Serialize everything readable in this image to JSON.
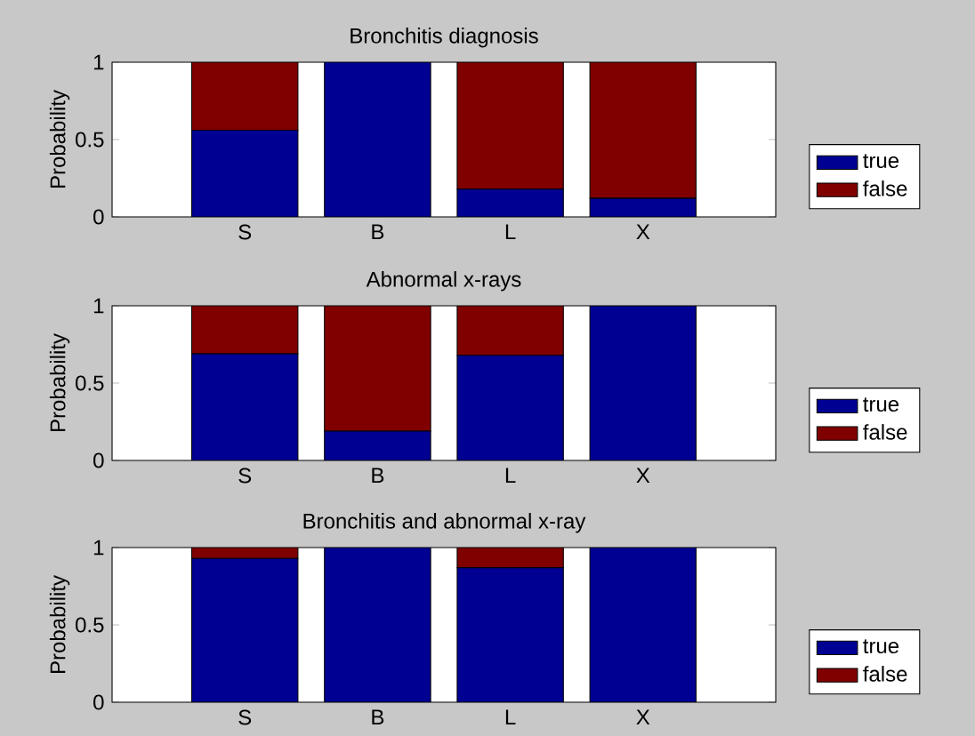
{
  "chart_data": [
    {
      "type": "bar",
      "title": "Bronchitis diagnosis",
      "ylabel": "Probability",
      "categories": [
        "S",
        "B",
        "L",
        "X"
      ],
      "stacked": true,
      "ylim": [
        0,
        1
      ],
      "yticks": [
        0,
        0.5,
        1
      ],
      "grid": false,
      "legend": "right",
      "series": [
        {
          "name": "true",
          "color": "#000093",
          "values": [
            0.56,
            1.0,
            0.18,
            0.12
          ]
        },
        {
          "name": "false",
          "color": "#800000",
          "values": [
            0.44,
            0.0,
            0.82,
            0.88
          ]
        }
      ]
    },
    {
      "type": "bar",
      "title": "Abnormal x-rays",
      "ylabel": "Probability",
      "categories": [
        "S",
        "B",
        "L",
        "X"
      ],
      "stacked": true,
      "ylim": [
        0,
        1
      ],
      "yticks": [
        0,
        0.5,
        1
      ],
      "grid": false,
      "legend": "right",
      "series": [
        {
          "name": "true",
          "color": "#000093",
          "values": [
            0.69,
            0.19,
            0.68,
            1.0
          ]
        },
        {
          "name": "false",
          "color": "#800000",
          "values": [
            0.31,
            0.81,
            0.32,
            0.0
          ]
        }
      ]
    },
    {
      "type": "bar",
      "title": "Bronchitis and abnormal x-ray",
      "ylabel": "Probability",
      "categories": [
        "S",
        "B",
        "L",
        "X"
      ],
      "stacked": true,
      "ylim": [
        0,
        1
      ],
      "yticks": [
        0,
        0.5,
        1
      ],
      "grid": false,
      "legend": "right",
      "series": [
        {
          "name": "true",
          "color": "#000093",
          "values": [
            0.93,
            1.0,
            0.87,
            1.0
          ]
        },
        {
          "name": "false",
          "color": "#800000",
          "values": [
            0.07,
            0.0,
            0.13,
            0.0
          ]
        }
      ]
    }
  ]
}
